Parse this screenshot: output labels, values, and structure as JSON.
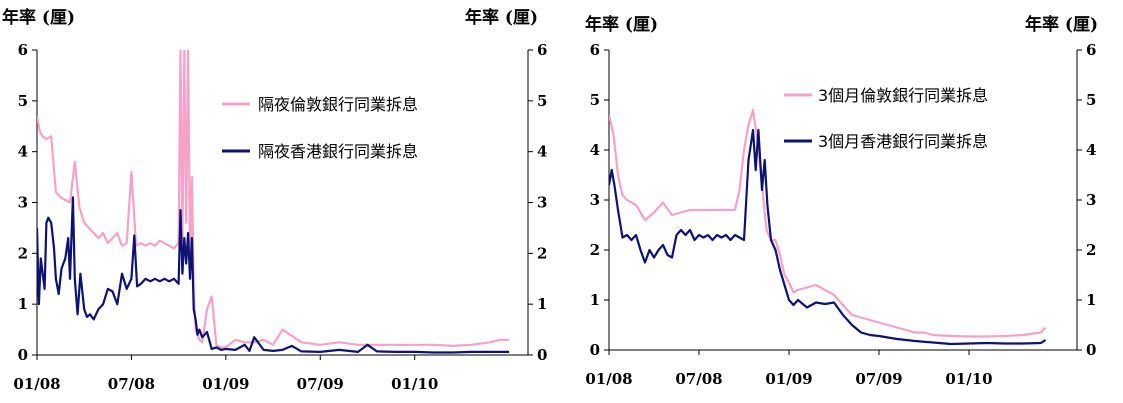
{
  "colors": {
    "london": "#f7a1c8",
    "hongkong": "#0d1275"
  },
  "chart_data": [
    {
      "type": "line",
      "title": "",
      "ylabel_left": "年率 (厘)",
      "ylabel_right": "年率 (厘)",
      "ylim": [
        0,
        6
      ],
      "yticks": [
        "0",
        "1",
        "2",
        "3",
        "4",
        "5",
        "6"
      ],
      "x_range": [
        0,
        52
      ],
      "xticks": [
        {
          "label": "01/08",
          "x": 0
        },
        {
          "label": "07/08",
          "x": 10
        },
        {
          "label": "01/09",
          "x": 20
        },
        {
          "label": "07/09",
          "x": 30
        },
        {
          "label": "01/10",
          "x": 40
        }
      ],
      "legend_position": "upper-right",
      "series": [
        {
          "name": "隔夜倫敦銀行同業拆息",
          "color": "#f7a1c8",
          "x": [
            0,
            0.3,
            0.6,
            1,
            1.5,
            2,
            2.5,
            3,
            3.5,
            4,
            4.5,
            5,
            5.5,
            6,
            6.5,
            7,
            7.5,
            8,
            8.5,
            9,
            9.5,
            10,
            10.5,
            11,
            11.5,
            12,
            12.5,
            13,
            13.5,
            14,
            14.5,
            15,
            15.2,
            15.4,
            15.6,
            15.8,
            16,
            16.2,
            16.4,
            16.6,
            16.8,
            17,
            17.2,
            17.5,
            18,
            18.5,
            19,
            19.5,
            20,
            21,
            22,
            23,
            24,
            25,
            26,
            28,
            30,
            32,
            34,
            36,
            38,
            40,
            42,
            44,
            46,
            48,
            49,
            50
          ],
          "y": [
            4.7,
            4.4,
            4.3,
            4.25,
            4.3,
            3.2,
            3.1,
            3.05,
            3.0,
            3.8,
            2.9,
            2.6,
            2.5,
            2.4,
            2.3,
            2.4,
            2.2,
            2.3,
            2.4,
            2.15,
            2.2,
            3.6,
            2.15,
            2.2,
            2.15,
            2.2,
            2.15,
            2.25,
            2.2,
            2.15,
            2.1,
            2.2,
            6.0,
            2.2,
            6.0,
            2.6,
            6.0,
            2.0,
            3.5,
            1.3,
            0.5,
            0.4,
            0.3,
            0.25,
            0.9,
            1.15,
            0.2,
            0.15,
            0.15,
            0.3,
            0.25,
            0.25,
            0.3,
            0.2,
            0.5,
            0.25,
            0.2,
            0.25,
            0.2,
            0.2,
            0.2,
            0.2,
            0.2,
            0.18,
            0.2,
            0.25,
            0.3,
            0.3
          ]
        },
        {
          "name": "隔夜香港銀行同業拆息",
          "color": "#0d1275",
          "x": [
            0,
            0.2,
            0.4,
            0.6,
            0.8,
            1,
            1.2,
            1.5,
            1.8,
            2,
            2.3,
            2.6,
            3,
            3.3,
            3.5,
            3.8,
            4,
            4.3,
            4.6,
            5,
            5.3,
            5.6,
            6,
            6.5,
            7,
            7.5,
            8,
            8.5,
            9,
            9.5,
            10,
            10.3,
            10.6,
            11,
            11.5,
            12,
            12.5,
            13,
            13.5,
            14,
            14.5,
            15,
            15.2,
            15.4,
            15.6,
            15.8,
            16,
            16.2,
            16.4,
            16.6,
            16.8,
            17,
            17.2,
            17.5,
            18,
            18.5,
            19,
            19.5,
            20,
            21,
            22,
            22.5,
            23,
            24,
            25,
            26,
            27,
            28,
            30,
            32,
            34,
            35,
            36,
            38,
            40,
            42,
            44,
            46,
            48,
            50
          ],
          "y": [
            2.5,
            1.0,
            1.9,
            1.6,
            1.3,
            2.6,
            2.7,
            2.6,
            2.1,
            1.5,
            1.2,
            1.7,
            1.9,
            2.3,
            1.5,
            3.1,
            1.5,
            0.8,
            1.6,
            0.9,
            0.75,
            0.8,
            0.7,
            0.9,
            1.0,
            1.3,
            1.25,
            1.0,
            1.6,
            1.3,
            1.5,
            2.35,
            1.35,
            1.4,
            1.5,
            1.45,
            1.5,
            1.45,
            1.5,
            1.45,
            1.5,
            1.4,
            2.85,
            1.6,
            2.3,
            1.8,
            2.4,
            1.5,
            2.3,
            0.9,
            0.7,
            0.4,
            0.5,
            0.35,
            0.45,
            0.12,
            0.15,
            0.1,
            0.12,
            0.1,
            0.2,
            0.08,
            0.35,
            0.1,
            0.08,
            0.1,
            0.18,
            0.07,
            0.06,
            0.1,
            0.06,
            0.2,
            0.07,
            0.06,
            0.06,
            0.05,
            0.05,
            0.06,
            0.06,
            0.06
          ]
        }
      ]
    },
    {
      "type": "line",
      "title": "",
      "ylabel_left": "年率 (厘)",
      "ylabel_right": "年率 (厘)",
      "ylim": [
        0,
        6
      ],
      "yticks": [
        "0",
        "1",
        "2",
        "3",
        "4",
        "5",
        "6"
      ],
      "x_range": [
        0,
        52
      ],
      "xticks": [
        {
          "label": "01/08",
          "x": 0
        },
        {
          "label": "07/08",
          "x": 10
        },
        {
          "label": "01/09",
          "x": 20
        },
        {
          "label": "07/09",
          "x": 30
        },
        {
          "label": "01/10",
          "x": 40
        }
      ],
      "legend_position": "upper-right",
      "series": [
        {
          "name": "3個月倫敦銀行同業拆息",
          "color": "#f7a1c8",
          "x": [
            0,
            0.5,
            1,
            1.5,
            2,
            3,
            4,
            5,
            6,
            7,
            8,
            9,
            10,
            11,
            12,
            13,
            14,
            14.5,
            15,
            15.5,
            16,
            16.5,
            17,
            17.5,
            18,
            18.5,
            19,
            19.5,
            20,
            20.5,
            21,
            22,
            23,
            24,
            25,
            26,
            27,
            28,
            29,
            30,
            31,
            32,
            33,
            34,
            35,
            36,
            38,
            40,
            42,
            44,
            46,
            48,
            48.5
          ],
          "y": [
            4.7,
            4.3,
            3.5,
            3.1,
            3.0,
            2.9,
            2.6,
            2.75,
            2.95,
            2.7,
            2.75,
            2.8,
            2.8,
            2.8,
            2.8,
            2.8,
            2.8,
            3.2,
            4.0,
            4.5,
            4.8,
            4.2,
            3.3,
            2.4,
            2.2,
            2.2,
            1.9,
            1.5,
            1.35,
            1.15,
            1.2,
            1.25,
            1.3,
            1.2,
            1.1,
            0.9,
            0.7,
            0.65,
            0.6,
            0.55,
            0.5,
            0.45,
            0.4,
            0.35,
            0.35,
            0.3,
            0.28,
            0.27,
            0.27,
            0.28,
            0.3,
            0.35,
            0.45
          ]
        },
        {
          "name": "3個月香港銀行同業拆息",
          "color": "#0d1275",
          "x": [
            0,
            0.3,
            0.6,
            1,
            1.5,
            2,
            2.5,
            3,
            3.5,
            4,
            4.5,
            5,
            5.5,
            6,
            6.5,
            7,
            7.5,
            8,
            8.5,
            9,
            9.5,
            10,
            10.5,
            11,
            11.5,
            12,
            12.5,
            13,
            13.5,
            14,
            14.5,
            15,
            15.5,
            16,
            16.3,
            16.6,
            17,
            17.3,
            17.6,
            18,
            18.5,
            19,
            19.5,
            20,
            20.5,
            21,
            22,
            23,
            24,
            25,
            26,
            27,
            28,
            29,
            30,
            31,
            32,
            34,
            36,
            38,
            40,
            42,
            44,
            46,
            48,
            48.5
          ],
          "y": [
            3.3,
            3.6,
            3.3,
            2.8,
            2.25,
            2.3,
            2.2,
            2.3,
            2.0,
            1.75,
            2.0,
            1.85,
            2.0,
            2.1,
            1.9,
            1.85,
            2.3,
            2.4,
            2.3,
            2.4,
            2.2,
            2.3,
            2.25,
            2.3,
            2.2,
            2.3,
            2.25,
            2.3,
            2.2,
            2.3,
            2.25,
            2.2,
            3.8,
            4.4,
            3.6,
            4.4,
            3.2,
            3.8,
            2.9,
            2.2,
            2.0,
            1.6,
            1.3,
            1.0,
            0.9,
            1.0,
            0.85,
            0.95,
            0.92,
            0.95,
            0.7,
            0.5,
            0.35,
            0.3,
            0.28,
            0.25,
            0.22,
            0.18,
            0.15,
            0.12,
            0.13,
            0.14,
            0.13,
            0.13,
            0.14,
            0.2
          ]
        }
      ]
    }
  ]
}
